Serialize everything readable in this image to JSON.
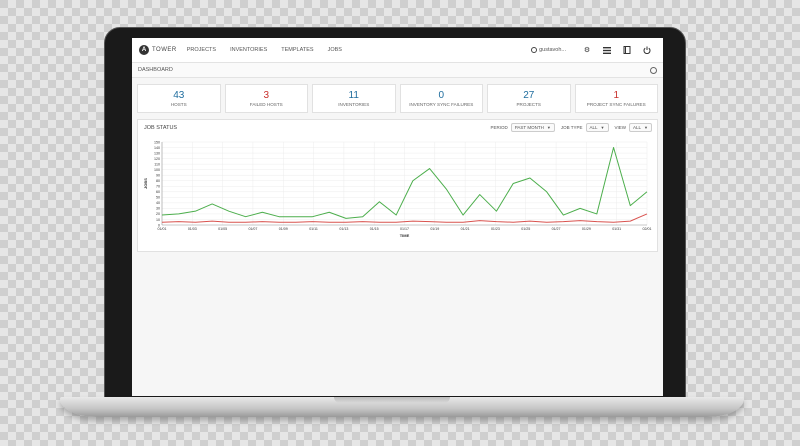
{
  "app": {
    "logo_letter": "A",
    "brand": "TOWER",
    "nav": [
      "PROJECTS",
      "INVENTORIES",
      "TEMPLATES",
      "JOBS"
    ],
    "user": "gustavoh..."
  },
  "breadcrumb": "DASHBOARD",
  "counts": [
    {
      "value": "43",
      "label": "HOSTS",
      "color": "#1f6d9e"
    },
    {
      "value": "3",
      "label": "FAILED HOSTS",
      "color": "#c9302c"
    },
    {
      "value": "11",
      "label": "INVENTORIES",
      "color": "#1f6d9e"
    },
    {
      "value": "0",
      "label": "INVENTORY SYNC FAILURES",
      "color": "#1f6d9e"
    },
    {
      "value": "27",
      "label": "PROJECTS",
      "color": "#1f6d9e"
    },
    {
      "value": "1",
      "label": "PROJECT SYNC FAILURES",
      "color": "#c9302c"
    }
  ],
  "job_status": {
    "title": "JOB STATUS",
    "period_label": "PERIOD",
    "period_value": "PAST MONTH",
    "job_type_label": "JOB TYPE",
    "job_type_value": "ALL",
    "view_label": "VIEW",
    "view_value": "ALL"
  },
  "chart_data": {
    "type": "line",
    "xlabel": "TIME",
    "ylabel": "JOBS",
    "ylim": [
      0,
      150
    ],
    "yticks": [
      0,
      10,
      20,
      30,
      40,
      50,
      60,
      70,
      80,
      90,
      100,
      110,
      120,
      130,
      140,
      150
    ],
    "x_tick_labels": [
      "01/01",
      "01/03",
      "01/05",
      "01/07",
      "01/09",
      "01/11",
      "01/13",
      "01/15",
      "01/17",
      "01/19",
      "01/21",
      "01/23",
      "01/25",
      "01/27",
      "01/29",
      "01/31",
      "02/01"
    ],
    "grid": true,
    "series": [
      {
        "color": "#4cae4c",
        "values": [
          18,
          20,
          25,
          38,
          25,
          15,
          23,
          15,
          15,
          15,
          23,
          12,
          15,
          42,
          18,
          80,
          102,
          65,
          18,
          55,
          25,
          75,
          85,
          60,
          18,
          30,
          20,
          140,
          35,
          60
        ]
      },
      {
        "color": "#d9534f",
        "values": [
          5,
          6,
          5,
          7,
          5,
          5,
          6,
          5,
          5,
          6,
          5,
          5,
          6,
          5,
          5,
          7,
          6,
          5,
          5,
          8,
          6,
          5,
          7,
          5,
          6,
          8,
          6,
          5,
          7,
          20
        ]
      }
    ],
    "legend": "none"
  },
  "colors": {
    "accent": "#1f6d9e",
    "failure": "#c9302c",
    "success_line": "#4cae4c"
  },
  "icons": [
    "logo-icon",
    "user-icon",
    "gear-icon",
    "list-icon",
    "book-icon",
    "power-icon",
    "ansible-icon"
  ]
}
